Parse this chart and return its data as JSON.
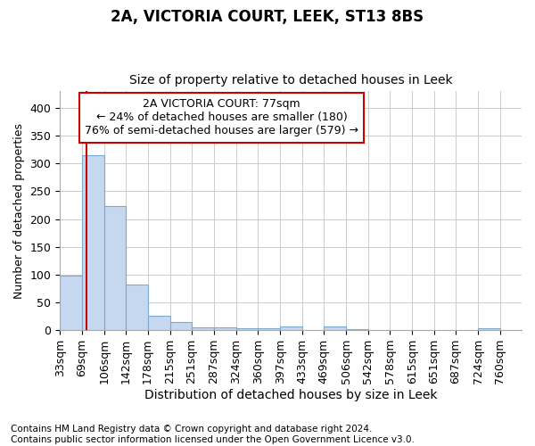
{
  "title1": "2A, VICTORIA COURT, LEEK, ST13 8BS",
  "title2": "Size of property relative to detached houses in Leek",
  "xlabel": "Distribution of detached houses by size in Leek",
  "ylabel": "Number of detached properties",
  "footnote": "Contains HM Land Registry data © Crown copyright and database right 2024.\nContains public sector information licensed under the Open Government Licence v3.0.",
  "bar_edges": [
    33,
    69,
    106,
    142,
    178,
    215,
    251,
    287,
    324,
    360,
    397,
    433,
    469,
    506,
    542,
    578,
    615,
    651,
    687,
    724,
    760
  ],
  "bar_heights": [
    98,
    315,
    224,
    82,
    26,
    14,
    5,
    5,
    4,
    4,
    7,
    0,
    6,
    2,
    0,
    0,
    0,
    0,
    0,
    3,
    0
  ],
  "bar_color": "#c5d8f0",
  "bar_edge_color": "#7aaad0",
  "bar_linewidth": 0.8,
  "vline_x": 77,
  "vline_color": "#cc0000",
  "vline_linewidth": 1.5,
  "annotation_line1": "2A VICTORIA COURT: 77sqm",
  "annotation_line2": "← 24% of detached houses are smaller (180)",
  "annotation_line3": "76% of semi-detached houses are larger (579) →",
  "annotation_box_color": "#ffffff",
  "annotation_box_edgecolor": "#cc0000",
  "annotation_fontsize": 9,
  "ylim": [
    0,
    430
  ],
  "yticks": [
    0,
    50,
    100,
    150,
    200,
    250,
    300,
    350,
    400
  ],
  "grid_color": "#cccccc",
  "background_color": "#ffffff",
  "title1_fontsize": 12,
  "title2_fontsize": 10,
  "xlabel_fontsize": 10,
  "ylabel_fontsize": 9,
  "tick_fontsize": 9,
  "footnote_fontsize": 7.5
}
